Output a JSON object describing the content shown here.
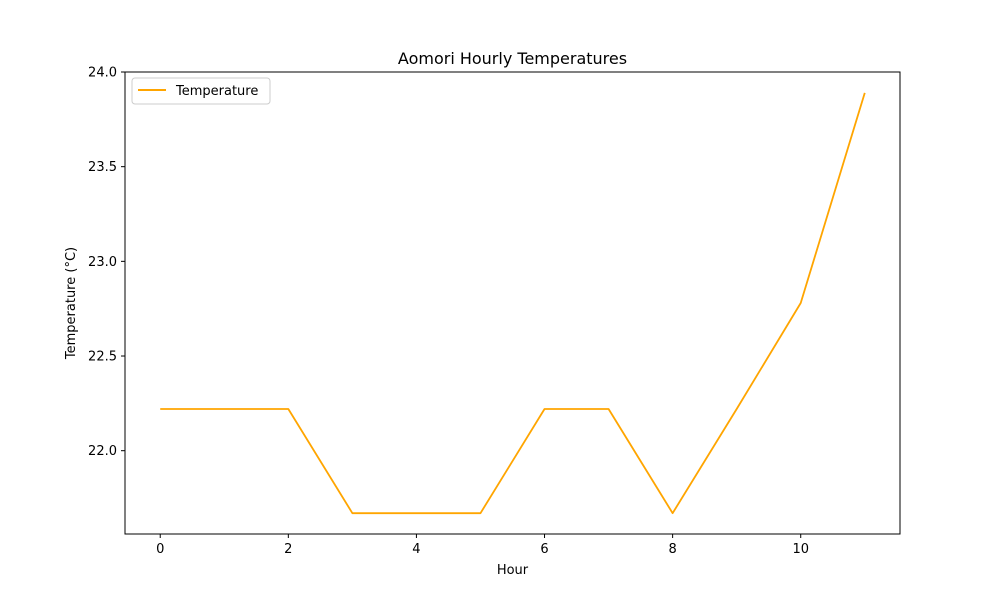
{
  "chart_data": {
    "type": "line",
    "title": "Aomori Hourly Temperatures",
    "xlabel": "Hour",
    "ylabel": "Temperature (°C)",
    "x": [
      0,
      1,
      2,
      3,
      4,
      5,
      6,
      7,
      8,
      9,
      10,
      11
    ],
    "series": [
      {
        "name": "Temperature",
        "color": "#ffa500",
        "values": [
          22.22,
          22.22,
          22.22,
          21.67,
          21.67,
          21.67,
          22.22,
          22.22,
          21.67,
          22.22,
          22.78,
          23.89
        ]
      }
    ],
    "xlim": [
      -0.55,
      11.55
    ],
    "ylim": [
      21.56,
      24.0
    ],
    "xticks": [
      "0",
      "2",
      "4",
      "6",
      "8",
      "10"
    ],
    "yticks": [
      "22.0",
      "22.5",
      "23.0",
      "23.5",
      "24.0"
    ],
    "grid": false,
    "legend": "upper-left"
  }
}
